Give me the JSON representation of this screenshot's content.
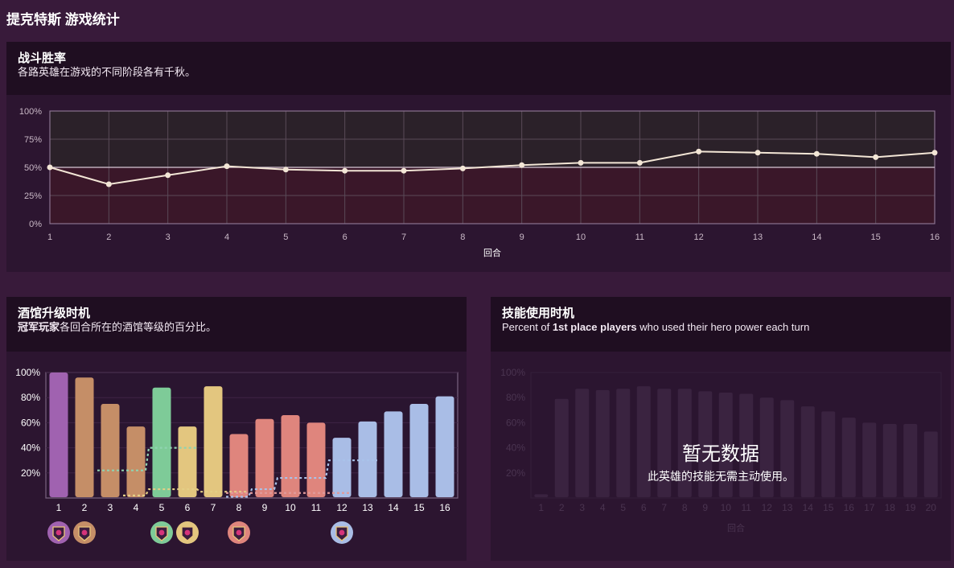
{
  "page": {
    "title": "提克特斯 游戏统计"
  },
  "winrate": {
    "title": "战斗胜率",
    "subtitle": "各路英雄在游戏的不同阶段各有千秋。",
    "chart_data": {
      "type": "line",
      "xlabel": "回合",
      "ylabel": "",
      "x": [
        1,
        2,
        3,
        4,
        5,
        6,
        7,
        8,
        9,
        10,
        11,
        12,
        13,
        14,
        15,
        16
      ],
      "y_ticks": [
        "0%",
        "25%",
        "50%",
        "75%",
        "100%"
      ],
      "ylim": [
        0,
        100
      ],
      "series": [
        {
          "values": [
            50,
            35,
            43,
            51,
            48,
            47,
            47,
            49,
            52,
            54,
            54,
            64,
            63,
            62,
            59,
            63
          ]
        }
      ],
      "reference_line": 50,
      "colors": {
        "line": "#f3e6d6",
        "above_fill": "#2b2129",
        "below_fill": "#3a1729"
      }
    }
  },
  "tavern": {
    "title": "酒馆升级时机",
    "subtitle_bold": "冠军玩家",
    "subtitle_rest": "各回合所在的酒馆等级的百分比。",
    "chart_data": {
      "type": "bar",
      "categories": [
        "1",
        "2",
        "3",
        "4",
        "5",
        "6",
        "7",
        "8",
        "9",
        "10",
        "11",
        "12",
        "13",
        "14",
        "15",
        "16"
      ],
      "y_ticks": [
        "20%",
        "40%",
        "60%",
        "80%",
        "100%"
      ],
      "ylim": [
        0,
        100
      ],
      "series": [
        {
          "values": [
            100,
            96,
            75,
            57,
            88,
            57,
            89,
            51,
            63,
            66,
            60,
            48,
            61,
            69,
            75,
            81
          ],
          "tiers": [
            1,
            2,
            2,
            2,
            3,
            4,
            4,
            5,
            5,
            5,
            5,
            6,
            6,
            6,
            6,
            6
          ]
        }
      ],
      "dotted_lines": [
        {
          "values": [
            null,
            null,
            22,
            22,
            40,
            40
          ],
          "color": "#8fd3b0",
          "from_category": 3
        },
        {
          "values": [
            null,
            null,
            null,
            2,
            7,
            7,
            5,
            5
          ],
          "color": "#e4cf86",
          "from_category": 4
        },
        {
          "values": [
            null,
            null,
            null,
            null,
            null,
            null,
            null,
            1,
            7,
            16,
            16,
            30,
            30
          ],
          "color": "#a9c3ea",
          "from_category": 8
        },
        {
          "values": [
            null,
            null,
            null,
            null,
            null,
            null,
            null,
            4,
            4,
            4,
            4,
            4
          ],
          "color": "#e09a9a",
          "from_category": 7
        }
      ],
      "tier_colors": [
        "#a062b0",
        "#c58e67",
        "#7ecb98",
        "#e3c67f",
        "#df857d",
        "#a9bde6"
      ],
      "badges": [
        {
          "category": 1,
          "tier": 1
        },
        {
          "category": 2,
          "tier": 2
        },
        {
          "category": 5,
          "tier": 3
        },
        {
          "category": 6,
          "tier": 4
        },
        {
          "category": 8,
          "tier": 5
        },
        {
          "category": 12,
          "tier": 6
        }
      ]
    }
  },
  "power": {
    "title": "技能使用时机",
    "subtitle_pre": "Percent of ",
    "subtitle_bold": "1st place players",
    "subtitle_post": " who used their hero power each turn",
    "no_data_title": "暂无数据",
    "no_data_sub": "此英雄的技能无需主动使用。",
    "chart_data": {
      "type": "bar",
      "categories": [
        "1",
        "2",
        "3",
        "4",
        "5",
        "6",
        "7",
        "8",
        "9",
        "10",
        "11",
        "12",
        "13",
        "14",
        "15",
        "16",
        "17",
        "18",
        "19",
        "20"
      ],
      "xlabel": "回合",
      "y_ticks": [
        "20%",
        "40%",
        "60%",
        "80%",
        "100%"
      ],
      "ylim": [
        0,
        100
      ],
      "series": [
        {
          "values": [
            3,
            79,
            87,
            86,
            87,
            89,
            87,
            87,
            85,
            84,
            83,
            80,
            78,
            73,
            69,
            64,
            60,
            59,
            59,
            53
          ]
        }
      ],
      "faded": true
    }
  }
}
